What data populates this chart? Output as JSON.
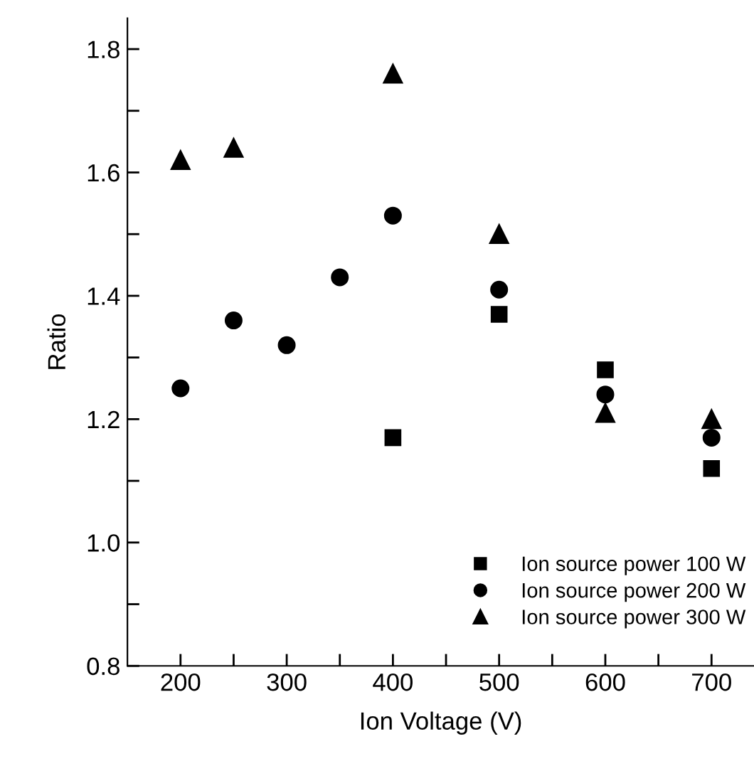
{
  "chart_data": {
    "type": "scatter",
    "xlabel": "Ion Voltage (V)",
    "ylabel": "Ratio",
    "xlim": [
      150,
      740
    ],
    "ylim": [
      0.8,
      1.85
    ],
    "xticks": [
      200,
      {
        "value": 250,
        "label": null
      },
      300,
      {
        "value": 350,
        "label": null
      },
      400,
      {
        "value": 450,
        "label": null
      },
      500,
      {
        "value": 550,
        "label": null
      },
      600,
      {
        "value": 650,
        "label": null
      },
      700
    ],
    "yticks": [
      0.8,
      {
        "value": 0.9,
        "label": null
      },
      {
        "value": 1.0,
        "label": "1.0"
      },
      {
        "value": 1.1,
        "label": null
      },
      1.2,
      {
        "value": 1.3,
        "label": null
      },
      1.4,
      {
        "value": 1.5,
        "label": null
      },
      1.6,
      {
        "value": 1.7,
        "label": null
      },
      1.8
    ],
    "grid": false,
    "legend": "bottom right",
    "series": [
      {
        "name": "Ion source power 100 W",
        "color": "#000000",
        "marker": "square",
        "x": [
          400,
          500,
          600,
          700
        ],
        "values": [
          1.17,
          1.37,
          1.28,
          1.12
        ]
      },
      {
        "name": "Ion source power 200 W",
        "color": "#000000",
        "marker": "circle",
        "x": [
          200,
          250,
          300,
          350,
          400,
          500,
          600,
          700
        ],
        "values": [
          1.25,
          1.36,
          1.32,
          1.43,
          1.53,
          1.41,
          1.24,
          1.17
        ]
      },
      {
        "name": "Ion source power 300 W",
        "color": "#000000",
        "marker": "triangle",
        "x": [
          200,
          250,
          400,
          500,
          600,
          700
        ],
        "values": [
          1.62,
          1.64,
          1.76,
          1.5,
          1.21,
          1.2
        ]
      }
    ]
  }
}
